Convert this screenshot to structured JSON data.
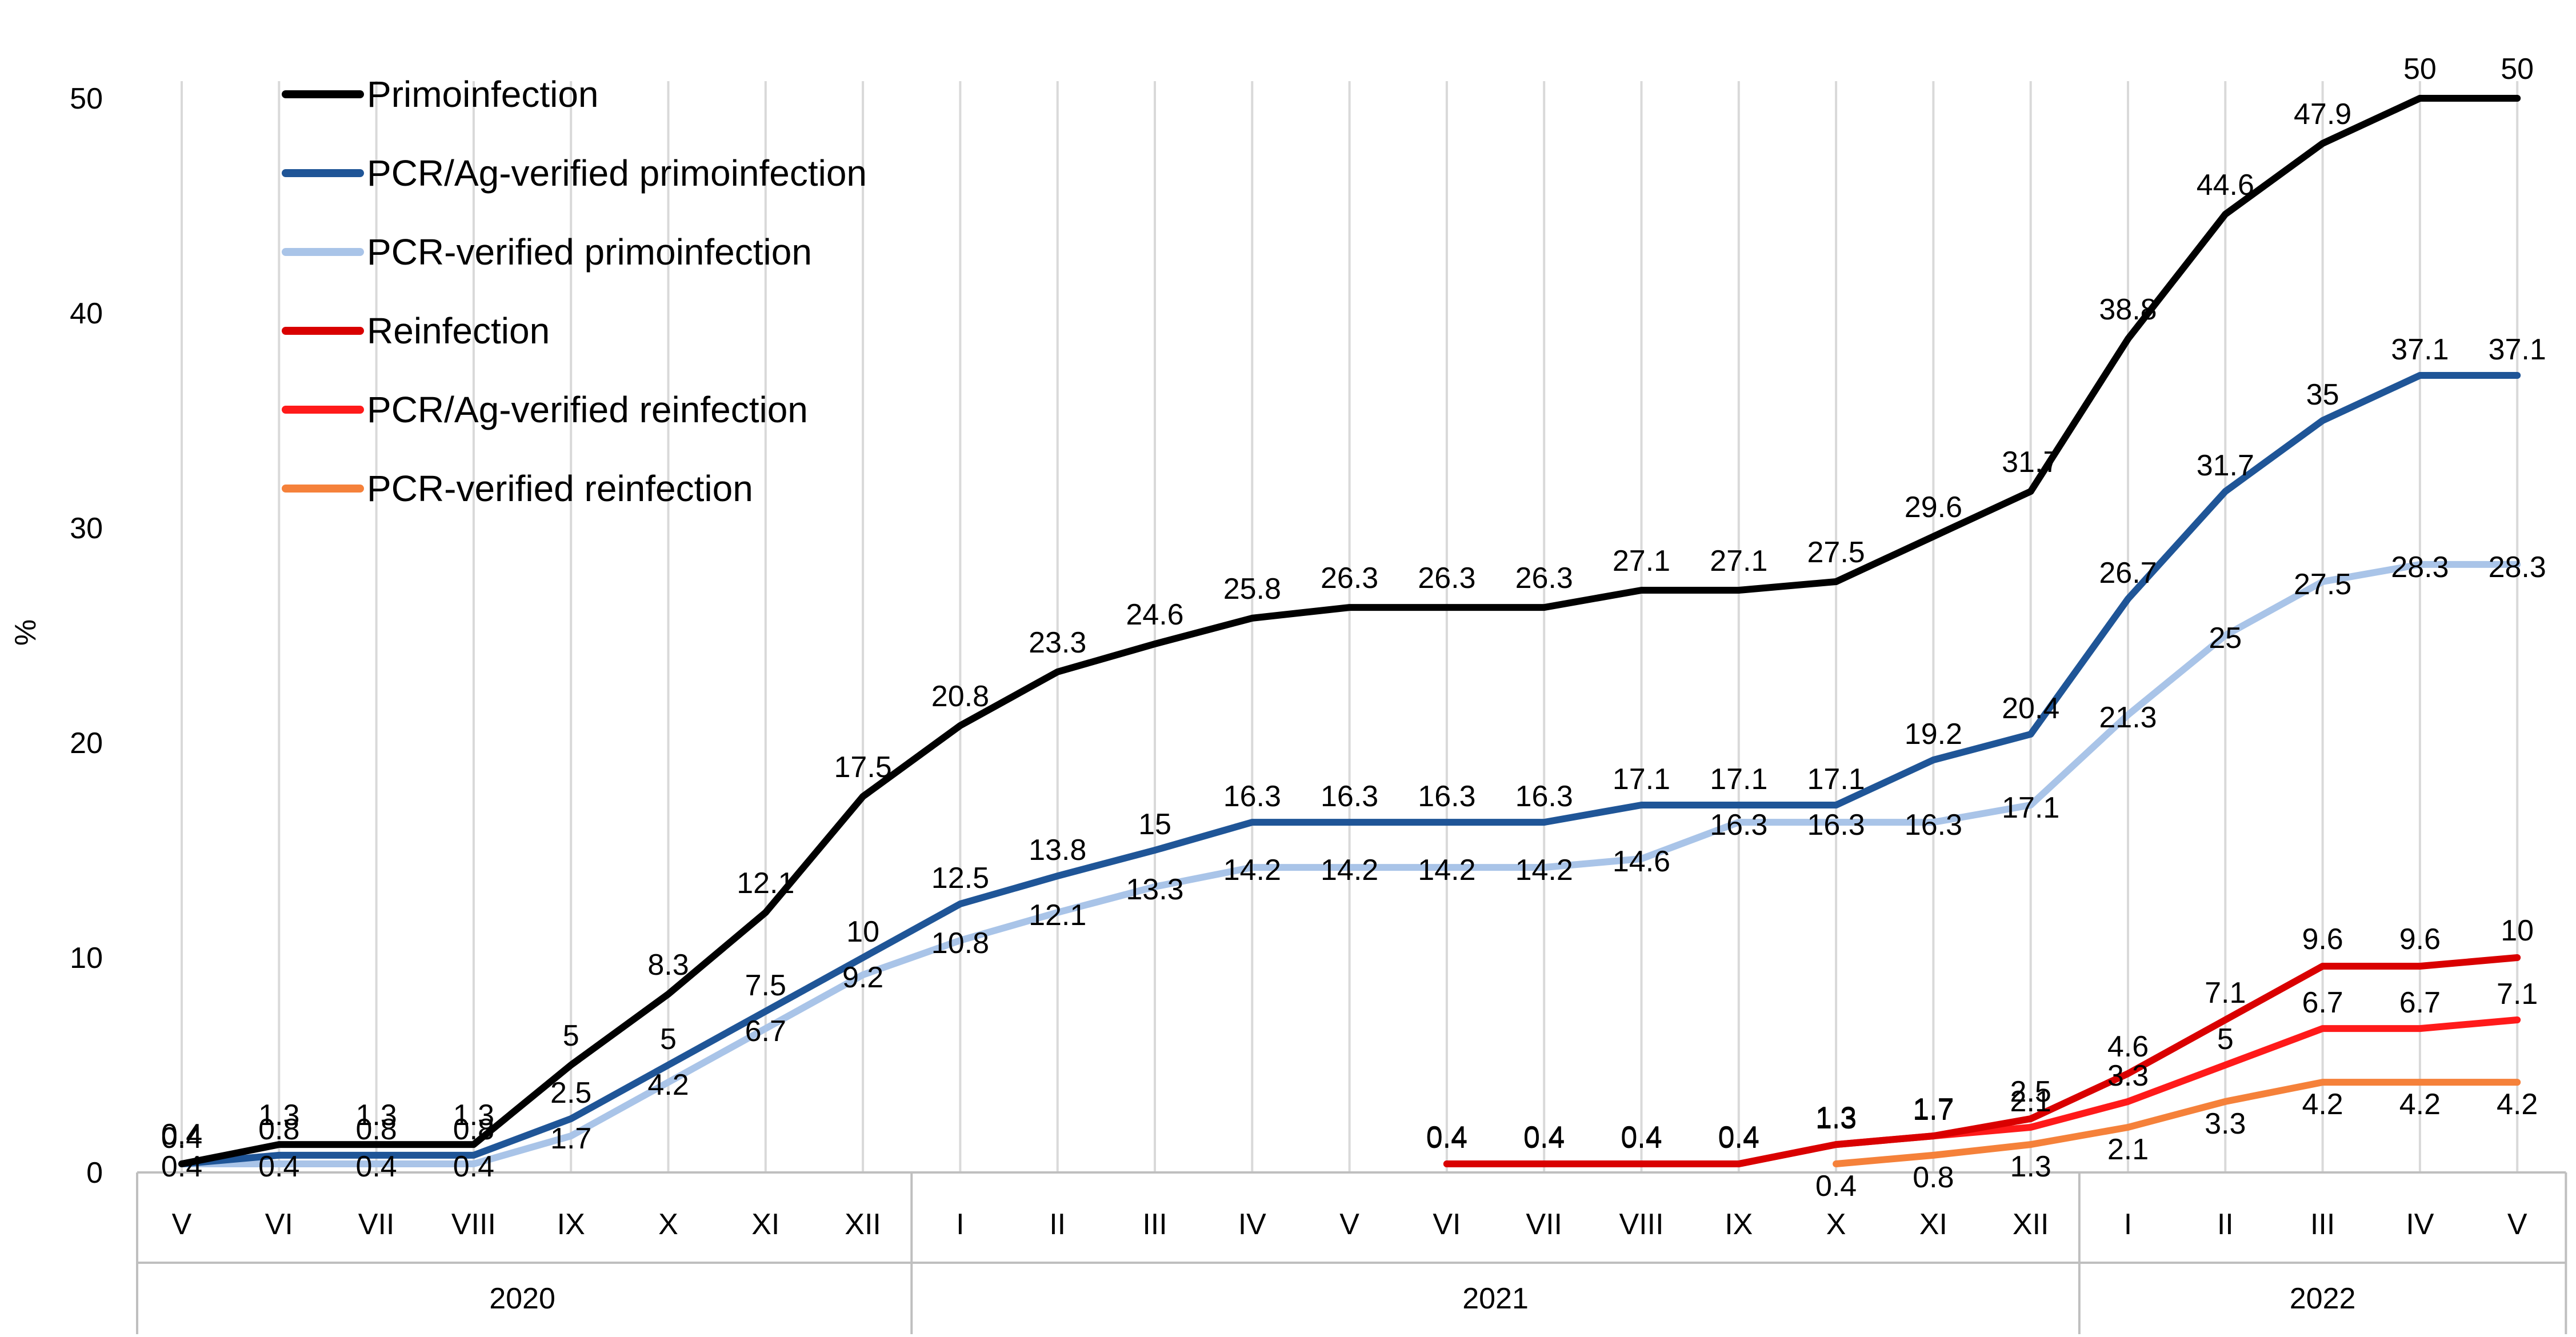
{
  "chart_data": {
    "type": "line",
    "title": "",
    "ylabel": "%",
    "xlabel": "",
    "ylim": [
      0,
      50
    ],
    "yticks": [
      0,
      10,
      20,
      30,
      40,
      50
    ],
    "grid": "vertical",
    "legend_position": "top-left",
    "categories": [
      "V",
      "VI",
      "VII",
      "VIII",
      "IX",
      "X",
      "XI",
      "XII",
      "I",
      "II",
      "III",
      "IV",
      "V",
      "VI",
      "VII",
      "VIII",
      "IX",
      "X",
      "XI",
      "XII",
      "I",
      "II",
      "III",
      "IV",
      "V"
    ],
    "years": [
      {
        "label": "2020",
        "start": 0,
        "end": 7
      },
      {
        "label": "2021",
        "start": 8,
        "end": 19
      },
      {
        "label": "2022",
        "start": 20,
        "end": 24
      }
    ],
    "series": [
      {
        "name": "Primoinfection",
        "color": "#000000",
        "values": [
          0.4,
          1.3,
          1.3,
          1.3,
          5,
          8.3,
          12.1,
          17.5,
          20.8,
          23.3,
          24.6,
          25.8,
          26.3,
          26.3,
          26.3,
          27.1,
          27.1,
          27.5,
          29.6,
          31.7,
          38.8,
          44.6,
          47.9,
          50,
          50
        ]
      },
      {
        "name": "PCR/Ag-verified primoinfection",
        "color": "#1f5597",
        "values": [
          0.4,
          0.8,
          0.8,
          0.8,
          2.5,
          5,
          7.5,
          10,
          12.5,
          13.8,
          15,
          16.3,
          16.3,
          16.3,
          16.3,
          17.1,
          17.1,
          17.1,
          19.2,
          20.4,
          26.7,
          31.7,
          35,
          37.1,
          37.1
        ]
      },
      {
        "name": "PCR-verified primoinfection",
        "color": "#a9c4e8",
        "values": [
          0.4,
          0.4,
          0.4,
          0.4,
          1.7,
          4.2,
          6.7,
          9.2,
          10.8,
          12.1,
          13.3,
          14.2,
          14.2,
          14.2,
          14.2,
          14.6,
          16.3,
          16.3,
          16.3,
          17.1,
          21.3,
          25,
          27.5,
          28.3,
          28.3
        ]
      },
      {
        "name": "Reinfection",
        "color": "#d90000",
        "values": [
          null,
          null,
          null,
          null,
          null,
          null,
          null,
          null,
          null,
          null,
          null,
          null,
          null,
          0.4,
          0.4,
          0.4,
          0.4,
          1.3,
          1.7,
          2.5,
          4.6,
          7.1,
          9.6,
          9.6,
          10
        ]
      },
      {
        "name": "PCR/Ag-verified reinfection",
        "color": "#ff1a1a",
        "values": [
          null,
          null,
          null,
          null,
          null,
          null,
          null,
          null,
          null,
          null,
          null,
          null,
          null,
          0.4,
          0.4,
          0.4,
          0.4,
          1.3,
          1.7,
          2.1,
          3.3,
          5,
          6.7,
          6.7,
          7.1
        ]
      },
      {
        "name": "PCR-verified reinfection",
        "color": "#f5813a",
        "values": [
          null,
          null,
          null,
          null,
          null,
          null,
          null,
          null,
          null,
          null,
          null,
          null,
          null,
          null,
          null,
          null,
          null,
          0.4,
          0.8,
          1.3,
          2.1,
          3.3,
          4.2,
          4.2,
          4.2
        ]
      }
    ]
  }
}
